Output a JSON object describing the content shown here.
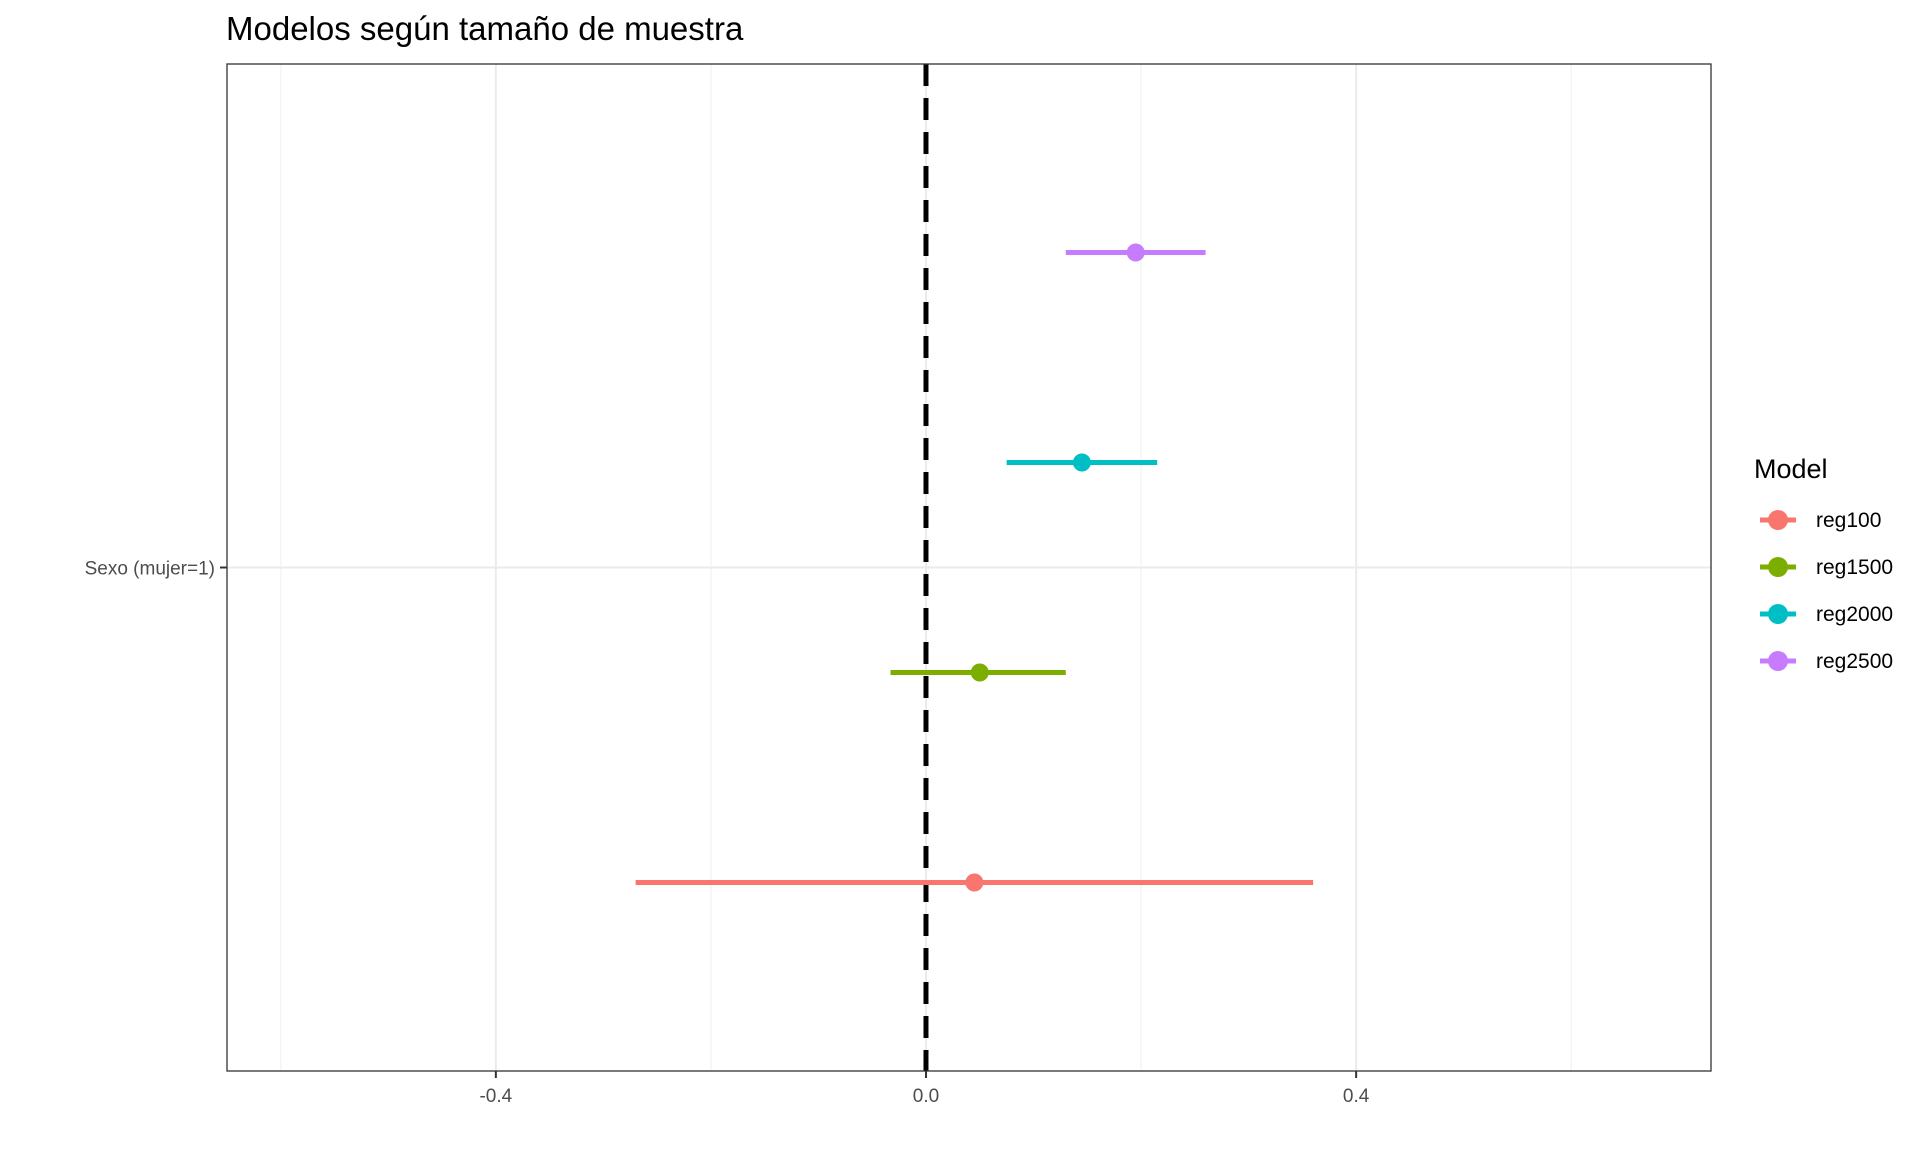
{
  "chart_data": {
    "type": "scatter",
    "subtype": "coefficient-plot",
    "title": "Modelos según tamaño de muestra",
    "xlabel": "",
    "ylabel": "",
    "xlim": [
      -0.65,
      0.73
    ],
    "x_ticks": [
      -0.4,
      0.0,
      0.4
    ],
    "x_tick_labels": [
      "-0.4",
      "0.0",
      "0.4"
    ],
    "y_categories": [
      "Sexo (mujer=1)"
    ],
    "reference_line": {
      "x": 0,
      "style": "dashed",
      "color": "#000000"
    },
    "grid": true,
    "legend": {
      "title": "Model",
      "placement": "right"
    },
    "series": [
      {
        "name": "reg2500",
        "color": "#C77CFF",
        "estimate": 0.195,
        "ci_low": 0.13,
        "ci_high": 0.26
      },
      {
        "name": "reg2000",
        "color": "#00BFC4",
        "estimate": 0.145,
        "ci_low": 0.075,
        "ci_high": 0.215
      },
      {
        "name": "reg1500",
        "color": "#7CAE00",
        "estimate": 0.05,
        "ci_low": -0.033,
        "ci_high": 0.13
      },
      {
        "name": "reg100",
        "color": "#F8766D",
        "estimate": 0.045,
        "ci_low": -0.27,
        "ci_high": 0.36
      }
    ]
  }
}
